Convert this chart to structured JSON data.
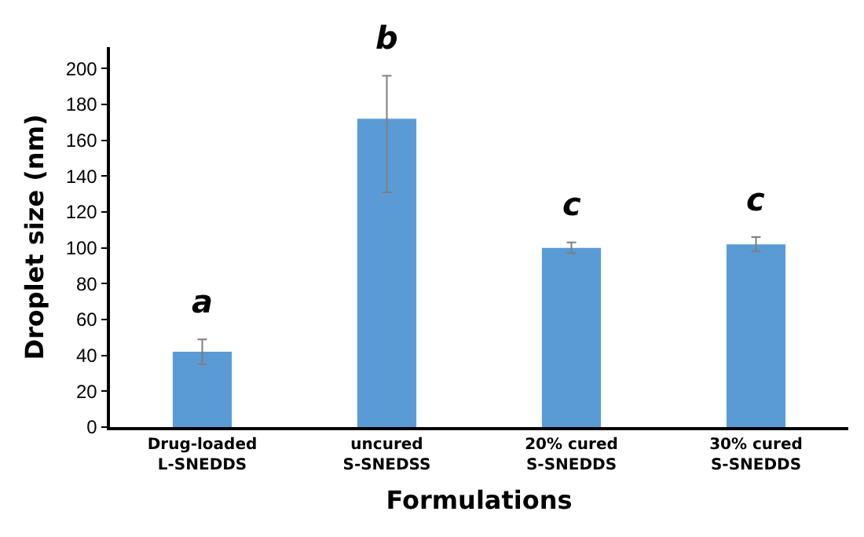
{
  "chart_data": {
    "type": "bar",
    "xlabel": "Formulations",
    "ylabel": "Droplet size (nm)",
    "categories": [
      "Drug-loaded\nL-SNEDDS",
      "uncured\nS-SNEDSS",
      "20% cured\nS-SNEDDS",
      "30% cured\nS-SNEDDS"
    ],
    "values": [
      42,
      172,
      100,
      102
    ],
    "errors": [
      7,
      [
        131,
        196
      ],
      3,
      4
    ],
    "color": "#5b9bd5",
    "ylim": [
      0,
      212
    ],
    "yticks": [
      0,
      20,
      40,
      60,
      80,
      100,
      120,
      140,
      160,
      180,
      200
    ],
    "grid": false,
    "annotations": [
      "a",
      "b",
      "c",
      "c"
    ]
  }
}
